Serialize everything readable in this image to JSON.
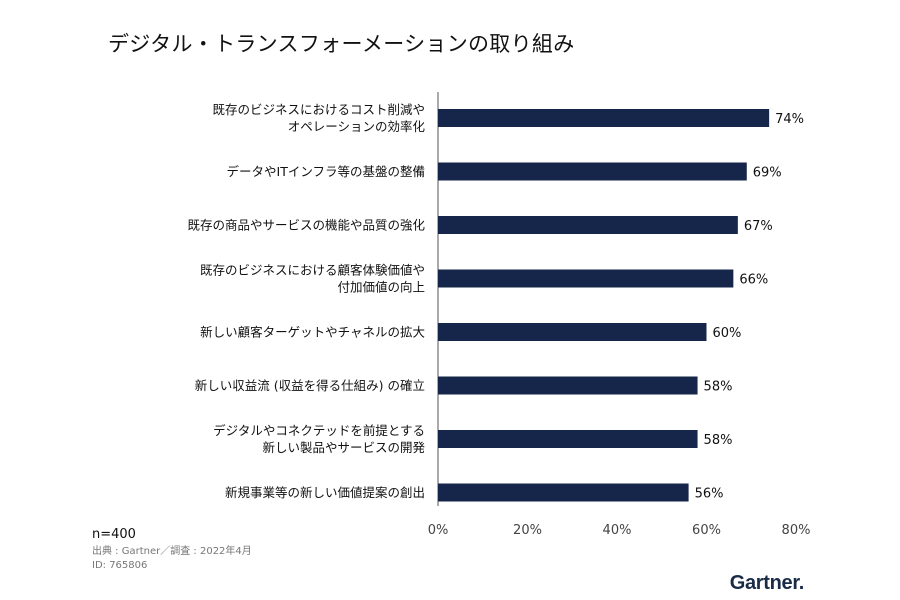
{
  "chart_data": {
    "type": "bar",
    "orientation": "horizontal",
    "title": "デジタル・トランスフォーメーションの取り組み",
    "categories": [
      [
        "既存のビジネスにおけるコスト削減や",
        "オペレーションの効率化"
      ],
      [
        "データやITインフラ等の基盤の整備"
      ],
      [
        "既存の商品やサービスの機能や品質の強化"
      ],
      [
        "既存のビジネスにおける顧客体験価値や",
        "付加価値の向上"
      ],
      [
        "新しい顧客ターゲットやチャネルの拡大"
      ],
      [
        "新しい収益流 (収益を得る仕組み) の確立"
      ],
      [
        "デジタルやコネクテッドを前提とする",
        "新しい製品やサービスの開発"
      ],
      [
        "新規事業等の新しい価値提案の創出"
      ]
    ],
    "values": [
      74,
      69,
      67,
      66,
      60,
      58,
      58,
      56
    ],
    "value_labels": [
      "74%",
      "69%",
      "67%",
      "66%",
      "60%",
      "58%",
      "58%",
      "56%"
    ],
    "xlim": [
      0,
      80
    ],
    "x_ticks": [
      "0%",
      "20%",
      "40%",
      "60%",
      "80%"
    ],
    "grid": false,
    "bar_color": "#16264a"
  },
  "footer": {
    "sample": "n=400",
    "source": "出典 : Gartner／調査 : 2022年4月",
    "id": "ID: 765806"
  },
  "logo": "Gartner."
}
